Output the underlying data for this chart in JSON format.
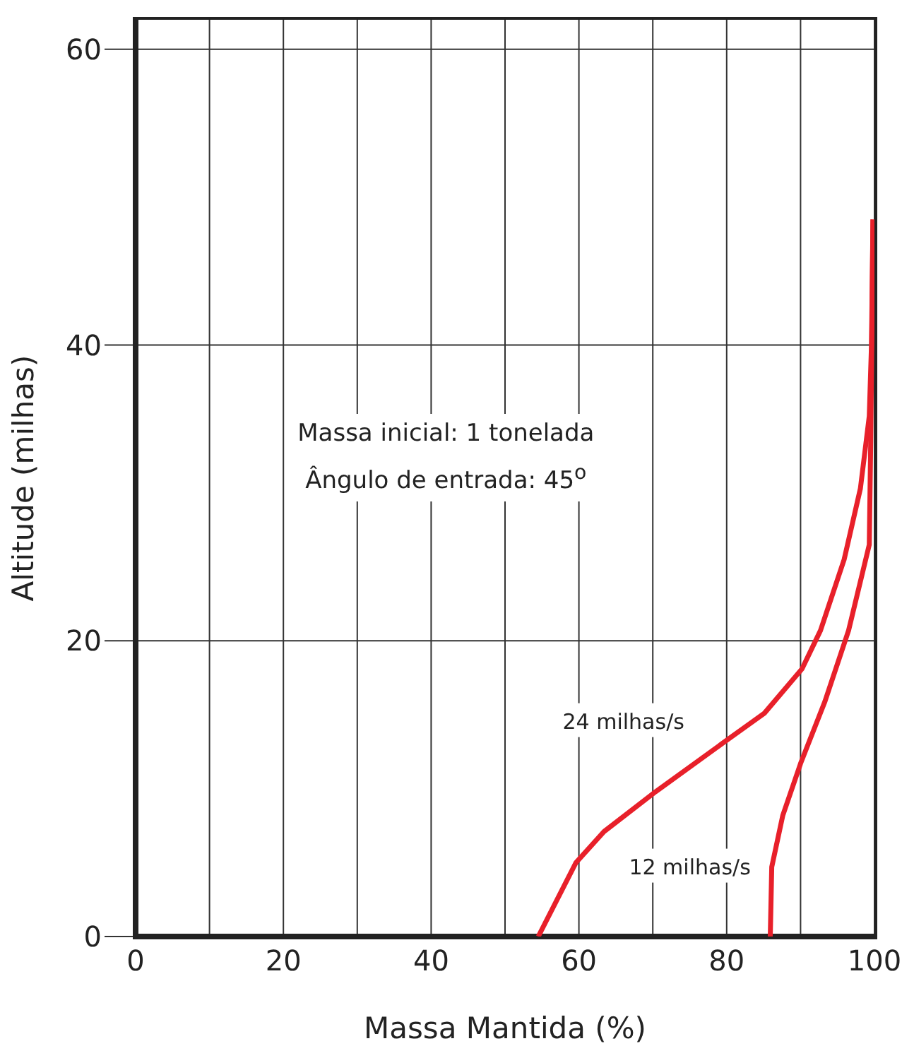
{
  "chart_data": {
    "type": "line",
    "xlabel": "Massa Mantida (%)",
    "ylabel": "Altitude (milhas)",
    "annotations": [
      "Massa inicial: 1 tonelada",
      "Ângulo de entrada: 45$^{o}$"
    ],
    "xlim": [
      0,
      100
    ],
    "ylim": [
      0,
      62
    ],
    "xticks": [
      0,
      {
        "value": 10,
        "label": null
      },
      20,
      {
        "value": 30,
        "label": null
      },
      40,
      {
        "value": 50,
        "label": null
      },
      60,
      {
        "value": 70,
        "label": null
      },
      80,
      {
        "value": 90,
        "label": null
      },
      100
    ],
    "yticks": [
      0,
      20,
      40,
      60
    ],
    "grid": true,
    "legend": false,
    "marker": "none",
    "line_style": "solid",
    "series": [
      {
        "name": "24 milhas/s",
        "color": "#e8202a",
        "x": [
          54.5,
          59.6,
          63.4,
          70.4,
          79.8,
          85.1,
          90.2,
          92.7,
          95.9,
          98.1,
          99.3,
          99.6,
          99.8
        ],
        "values": [
          0,
          5,
          7.1,
          9.8,
          13.2,
          15.1,
          18.1,
          20.7,
          25.5,
          30.3,
          35.2,
          40,
          48.5
        ]
      },
      {
        "name": "12 milhas/s",
        "color": "#e8202a",
        "x": [
          85.9,
          86.1,
          87.6,
          90,
          93.3,
          96.5,
          99.3,
          99.5,
          99.7,
          99.8
        ],
        "values": [
          0,
          4.7,
          8.2,
          11.7,
          15.9,
          20.7,
          26.5,
          33.6,
          43.2,
          48.5
        ]
      }
    ]
  }
}
